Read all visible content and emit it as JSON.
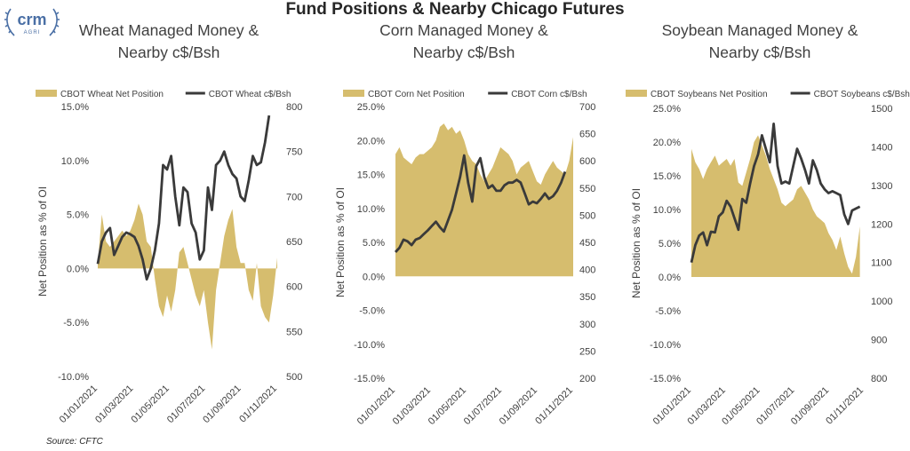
{
  "page": {
    "title": "Fund Positions & Nearby Chicago Futures",
    "source": "Source: CFTC",
    "logo": {
      "brand": "crm",
      "sub": "AGRI"
    }
  },
  "colors": {
    "area": "#d6bd6e",
    "line": "#3a3a3a"
  },
  "chart_data": [
    {
      "type": "area",
      "title": "Wheat Managed Money & Nearby c$/Bsh",
      "title_lines": [
        "Wheat Managed Money &",
        "Nearby c$/Bsh"
      ],
      "ylabel": "Net Position as % of OI",
      "legend": [
        "CBOT Wheat Net Position",
        "CBOT Wheat c$/Bsh"
      ],
      "x_ticks": [
        "01/01/2021",
        "01/03/2021",
        "01/05/2021",
        "01/07/2021",
        "01/09/2021",
        "01/11/2021"
      ],
      "x_range": [
        0,
        44
      ],
      "y_left": {
        "ticks": [
          "15.0%",
          "10.0%",
          "5.0%",
          "0.0%",
          "-5.0%",
          "-10.0%"
        ],
        "range": [
          -10,
          15
        ]
      },
      "y_right": {
        "ticks": [
          "800",
          "750",
          "700",
          "650",
          "600",
          "550",
          "500"
        ],
        "range": [
          500,
          800
        ]
      },
      "series": [
        {
          "name": "CBOT Wheat Net Position",
          "axis": "left",
          "values": [
            0.5,
            5.0,
            2.5,
            2.0,
            2.5,
            3.0,
            3.5,
            3.0,
            3.5,
            4.5,
            6.0,
            5.0,
            2.5,
            2.0,
            -1.0,
            -3.5,
            -4.5,
            -2.5,
            -4.0,
            -2.0,
            1.5,
            2.0,
            0.5,
            -1.0,
            -2.5,
            -3.5,
            -2.0,
            -5.0,
            -7.5,
            -2.0,
            0.5,
            3.0,
            4.5,
            5.5,
            2.0,
            0.5,
            0.5,
            -2.0,
            -3.0,
            0.5,
            -3.5,
            -4.5,
            -5.0,
            -2.5,
            1.0
          ]
        },
        {
          "name": "CBOT Wheat c$/Bsh",
          "axis": "right",
          "values": [
            625,
            650,
            660,
            665,
            635,
            645,
            655,
            660,
            658,
            655,
            645,
            630,
            608,
            620,
            640,
            670,
            735,
            730,
            745,
            700,
            668,
            710,
            705,
            670,
            660,
            630,
            640,
            710,
            685,
            735,
            740,
            750,
            735,
            725,
            720,
            700,
            695,
            718,
            745,
            735,
            738,
            760,
            790
          ]
        }
      ]
    },
    {
      "type": "area",
      "title": "Corn Managed Money & Nearby c$/Bsh",
      "title_lines": [
        "Corn Managed Money &",
        "Nearby c$/Bsh"
      ],
      "ylabel": "Net Position as % of OI",
      "legend": [
        "CBOT Corn Net Position",
        "CBOT Corn c$/Bsh"
      ],
      "x_ticks": [
        "01/01/2021",
        "01/03/2021",
        "01/05/2021",
        "01/07/2021",
        "01/09/2021",
        "01/11/2021"
      ],
      "x_range": [
        0,
        44
      ],
      "y_left": {
        "ticks": [
          "25.0%",
          "20.0%",
          "15.0%",
          "10.0%",
          "5.0%",
          "0.0%",
          "-5.0%",
          "-10.0%",
          "-15.0%"
        ],
        "range": [
          -15,
          25
        ]
      },
      "y_right": {
        "ticks": [
          "700",
          "650",
          "600",
          "550",
          "500",
          "450",
          "400",
          "350",
          "300",
          "250",
          "200"
        ],
        "range": [
          200,
          700
        ]
      },
      "series": [
        {
          "name": "CBOT Corn Net Position",
          "axis": "left",
          "values": [
            18.0,
            19.0,
            17.5,
            17.0,
            16.5,
            17.5,
            18.0,
            18.0,
            18.5,
            19.0,
            20.0,
            22.0,
            22.5,
            21.5,
            22.0,
            21.0,
            21.5,
            20.0,
            18.0,
            17.0,
            16.5,
            15.0,
            14.0,
            15.0,
            16.0,
            17.5,
            19.0,
            18.5,
            18.0,
            17.0,
            15.0,
            16.0,
            16.5,
            17.0,
            15.5,
            14.0,
            13.5,
            15.0,
            16.0,
            17.0,
            16.0,
            15.5,
            15.0,
            17.0,
            20.5
          ]
        },
        {
          "name": "CBOT Corn c$/Bsh",
          "axis": "right",
          "values": [
            432,
            440,
            455,
            452,
            445,
            455,
            458,
            465,
            472,
            480,
            488,
            478,
            470,
            490,
            510,
            540,
            570,
            610,
            560,
            525,
            590,
            605,
            570,
            550,
            555,
            545,
            545,
            555,
            560,
            560,
            565,
            560,
            540,
            520,
            525,
            522,
            530,
            540,
            530,
            535,
            545,
            560,
            580
          ]
        }
      ]
    },
    {
      "type": "area",
      "title": "Soybean Managed Money & Nearby c$/Bsh",
      "title_lines": [
        "Soybean Managed Money &",
        "Nearby c$/Bsh"
      ],
      "ylabel": "Net Position as % of OI",
      "legend": [
        "CBOT Soybeans Net Position",
        "CBOT Soybeans c$/Bsh"
      ],
      "x_ticks": [
        "01/01/2021",
        "01/03/2021",
        "01/05/2021",
        "01/07/2021",
        "01/09/2021",
        "01/11/2021"
      ],
      "x_range": [
        0,
        44
      ],
      "y_left": {
        "ticks": [
          "25.0%",
          "20.0%",
          "15.0%",
          "10.0%",
          "5.0%",
          "0.0%",
          "-5.0%",
          "-10.0%",
          "-15.0%"
        ],
        "range": [
          -15,
          25
        ]
      },
      "y_right": {
        "ticks": [
          "1500",
          "1400",
          "1300",
          "1200",
          "1100",
          "1000",
          "900",
          "800"
        ],
        "range": [
          800,
          1500
        ]
      },
      "series": [
        {
          "name": "CBOT Soybeans Net Position",
          "axis": "left",
          "values": [
            19.0,
            17.0,
            16.0,
            14.5,
            16.0,
            17.0,
            18.0,
            16.5,
            17.0,
            17.5,
            16.5,
            17.5,
            14.0,
            13.5,
            15.5,
            17.5,
            20.0,
            21.0,
            19.5,
            18.0,
            16.0,
            14.5,
            13.0,
            11.0,
            10.5,
            11.0,
            11.5,
            13.0,
            13.5,
            12.5,
            11.5,
            10.0,
            9.0,
            8.5,
            8.0,
            6.5,
            5.5,
            4.0,
            6.0,
            3.5,
            1.5,
            0.5,
            3.0,
            7.5
          ]
        },
        {
          "name": "CBOT Soybeans c$/Bsh",
          "axis": "right",
          "values": [
            1100,
            1145,
            1170,
            1178,
            1145,
            1180,
            1178,
            1220,
            1230,
            1260,
            1245,
            1215,
            1185,
            1265,
            1255,
            1305,
            1350,
            1380,
            1430,
            1395,
            1360,
            1460,
            1350,
            1305,
            1310,
            1305,
            1350,
            1395,
            1370,
            1340,
            1305,
            1365,
            1340,
            1305,
            1290,
            1280,
            1285,
            1280,
            1275,
            1225,
            1200,
            1235,
            1240,
            1245
          ]
        }
      ]
    }
  ]
}
